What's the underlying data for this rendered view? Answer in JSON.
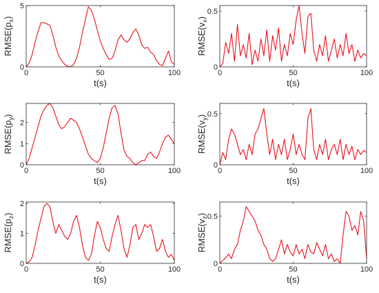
{
  "figure": {
    "line_color": "#e8101c",
    "axis_color": "#262626"
  },
  "chart_data": [
    {
      "type": "line",
      "ylabel_base": "RMSE(p",
      "ylabel_sub": "x",
      "ylabel_close": ")",
      "xlabel": "t(s)",
      "xlim": [
        0,
        100
      ],
      "ylim": [
        0,
        5
      ],
      "xticks": [
        0,
        50,
        100
      ],
      "xtick_labels": [
        "0",
        "50",
        "100"
      ],
      "yticks": [
        0,
        5
      ],
      "ytick_labels": [
        "0",
        "5"
      ],
      "series": [
        {
          "x": [
            0,
            2,
            4,
            6,
            8,
            10,
            12,
            14,
            16,
            18,
            20,
            22,
            24,
            26,
            28,
            30,
            32,
            34,
            36,
            38,
            40,
            42,
            44,
            46,
            48,
            50,
            52,
            54,
            56,
            58,
            60,
            62,
            64,
            66,
            68,
            70,
            72,
            74,
            76,
            78,
            80,
            82,
            84,
            86,
            88,
            90,
            92,
            94,
            96,
            98,
            100
          ],
          "values": [
            0.0,
            0.3,
            1.0,
            2.0,
            2.9,
            3.6,
            3.6,
            3.5,
            3.4,
            2.6,
            1.6,
            0.9,
            0.5,
            0.2,
            0.05,
            0.0,
            0.2,
            0.7,
            1.6,
            2.8,
            3.9,
            4.9,
            4.6,
            3.9,
            3.0,
            2.1,
            1.5,
            1.0,
            0.6,
            0.7,
            1.3,
            2.2,
            2.6,
            2.2,
            2.0,
            2.3,
            2.8,
            3.1,
            2.6,
            1.8,
            1.5,
            1.6,
            1.2,
            1.0,
            0.5,
            0.2,
            0.1,
            0.7,
            1.3,
            0.4,
            0.2
          ]
        }
      ]
    },
    {
      "type": "line",
      "ylabel_base": "RMSE(v",
      "ylabel_sub": "x",
      "ylabel_close": ")",
      "xlabel": "t(s)",
      "xlim": [
        0,
        100
      ],
      "ylim": [
        0,
        0.55
      ],
      "xticks": [
        0,
        50,
        100
      ],
      "xtick_labels": [
        "0",
        "50",
        "100"
      ],
      "yticks": [
        0,
        0.5
      ],
      "ytick_labels": [
        "0",
        "0.5"
      ],
      "series": [
        {
          "x": [
            0,
            2,
            4,
            6,
            8,
            10,
            12,
            14,
            16,
            18,
            20,
            22,
            24,
            26,
            28,
            30,
            32,
            34,
            36,
            38,
            40,
            42,
            44,
            46,
            48,
            50,
            52,
            54,
            56,
            58,
            60,
            62,
            64,
            66,
            68,
            70,
            72,
            74,
            76,
            78,
            80,
            82,
            84,
            86,
            88,
            90,
            92,
            94,
            96,
            98,
            100
          ],
          "values": [
            0.0,
            0.03,
            0.22,
            0.12,
            0.3,
            0.05,
            0.38,
            0.1,
            0.2,
            0.08,
            0.3,
            0.02,
            0.15,
            0.05,
            0.25,
            0.1,
            0.33,
            0.05,
            0.28,
            0.15,
            0.35,
            0.05,
            0.2,
            0.1,
            0.3,
            0.2,
            0.42,
            0.55,
            0.3,
            0.12,
            0.45,
            0.48,
            0.15,
            0.05,
            0.2,
            0.1,
            0.28,
            0.05,
            0.15,
            0.25,
            0.08,
            0.2,
            0.1,
            0.3,
            0.12,
            0.2,
            0.05,
            0.15,
            0.08,
            0.12,
            0.1
          ]
        }
      ]
    },
    {
      "type": "line",
      "ylabel_base": "RMSE(p",
      "ylabel_sub": "y",
      "ylabel_close": ")",
      "xlabel": "t(s)",
      "xlim": [
        0,
        100
      ],
      "ylim": [
        0,
        2.9
      ],
      "xticks": [
        0,
        50,
        100
      ],
      "xtick_labels": [
        "0",
        "50",
        "100"
      ],
      "yticks": [
        0,
        1,
        2
      ],
      "ytick_labels": [
        "0",
        "1",
        "2"
      ],
      "series": [
        {
          "x": [
            0,
            2,
            4,
            6,
            8,
            10,
            12,
            14,
            16,
            18,
            20,
            22,
            24,
            26,
            28,
            30,
            32,
            34,
            36,
            38,
            40,
            42,
            44,
            46,
            48,
            50,
            52,
            54,
            56,
            58,
            60,
            62,
            64,
            66,
            68,
            70,
            72,
            74,
            76,
            78,
            80,
            82,
            84,
            86,
            88,
            90,
            92,
            94,
            96,
            98,
            100
          ],
          "values": [
            0.0,
            0.3,
            0.8,
            1.3,
            1.8,
            2.3,
            2.6,
            2.8,
            2.9,
            2.7,
            2.3,
            1.9,
            1.7,
            1.8,
            2.0,
            2.2,
            2.1,
            2.0,
            1.7,
            1.3,
            0.9,
            0.5,
            0.3,
            0.2,
            0.1,
            0.3,
            0.8,
            1.5,
            2.2,
            2.7,
            2.8,
            2.4,
            1.5,
            0.7,
            0.4,
            0.3,
            0.1,
            0.0,
            0.1,
            0.2,
            0.2,
            0.5,
            0.6,
            0.4,
            0.3,
            0.6,
            1.0,
            1.3,
            1.4,
            1.2,
            1.0
          ]
        }
      ]
    },
    {
      "type": "line",
      "ylabel_base": "RMSE(v",
      "ylabel_sub": "y",
      "ylabel_close": ")",
      "xlabel": "t(s)",
      "xlim": [
        0,
        100
      ],
      "ylim": [
        0,
        0.6
      ],
      "xticks": [
        0,
        50,
        100
      ],
      "xtick_labels": [
        "0",
        "50",
        "100"
      ],
      "yticks": [
        0,
        0.5
      ],
      "ytick_labels": [
        "0",
        "0.5"
      ],
      "series": [
        {
          "x": [
            0,
            2,
            4,
            6,
            8,
            10,
            12,
            14,
            16,
            18,
            20,
            22,
            24,
            26,
            28,
            30,
            32,
            34,
            36,
            38,
            40,
            42,
            44,
            46,
            48,
            50,
            52,
            54,
            56,
            58,
            60,
            62,
            64,
            66,
            68,
            70,
            72,
            74,
            76,
            78,
            80,
            82,
            84,
            86,
            88,
            90,
            92,
            94,
            96,
            98,
            100
          ],
          "values": [
            0.0,
            0.12,
            0.05,
            0.25,
            0.35,
            0.3,
            0.2,
            0.1,
            0.15,
            0.05,
            0.2,
            0.1,
            0.3,
            0.35,
            0.45,
            0.55,
            0.3,
            0.1,
            0.25,
            0.05,
            0.2,
            0.1,
            0.25,
            0.05,
            0.15,
            0.3,
            0.1,
            0.2,
            0.1,
            0.05,
            0.45,
            0.55,
            0.15,
            0.05,
            0.2,
            0.1,
            0.25,
            0.05,
            0.15,
            0.2,
            0.1,
            0.25,
            0.05,
            0.2,
            0.1,
            0.18,
            0.05,
            0.15,
            0.1,
            0.14,
            0.12
          ]
        }
      ]
    },
    {
      "type": "line",
      "ylabel_base": "RMSE(p",
      "ylabel_sub": "z",
      "ylabel_close": ")",
      "xlabel": "t(s)",
      "xlim": [
        0,
        100
      ],
      "ylim": [
        0,
        2.05
      ],
      "xticks": [
        0,
        50,
        100
      ],
      "xtick_labels": [
        "0",
        "50",
        "100"
      ],
      "yticks": [
        0,
        1,
        2
      ],
      "ytick_labels": [
        "0",
        "1",
        "2"
      ],
      "series": [
        {
          "x": [
            0,
            2,
            4,
            6,
            8,
            10,
            12,
            14,
            16,
            18,
            20,
            22,
            24,
            26,
            28,
            30,
            32,
            34,
            36,
            38,
            40,
            42,
            44,
            46,
            48,
            50,
            52,
            54,
            56,
            58,
            60,
            62,
            64,
            66,
            68,
            70,
            72,
            74,
            76,
            78,
            80,
            82,
            84,
            86,
            88,
            90,
            92,
            94,
            96,
            98,
            100
          ],
          "values": [
            0.0,
            0.05,
            0.2,
            0.6,
            1.1,
            1.5,
            1.9,
            2.0,
            1.9,
            1.4,
            1.0,
            1.3,
            1.1,
            0.9,
            0.8,
            1.0,
            1.4,
            1.6,
            1.2,
            0.6,
            0.2,
            0.1,
            0.3,
            0.9,
            1.4,
            1.2,
            0.8,
            0.5,
            0.4,
            0.9,
            1.3,
            1.6,
            1.1,
            0.5,
            0.2,
            0.6,
            1.2,
            1.3,
            0.8,
            1.0,
            1.3,
            1.2,
            1.3,
            0.9,
            0.4,
            0.5,
            0.8,
            0.4,
            0.2,
            0.3,
            0.1
          ]
        }
      ]
    },
    {
      "type": "line",
      "ylabel_base": "RMSE(v",
      "ylabel_sub": "z",
      "ylabel_close": ")",
      "xlabel": "t(s)",
      "xlim": [
        0,
        100
      ],
      "ylim": [
        0,
        0.65
      ],
      "xticks": [
        0,
        50,
        100
      ],
      "xtick_labels": [
        "0",
        "50",
        "100"
      ],
      "yticks": [
        0,
        0.5
      ],
      "ytick_labels": [
        "0",
        "0.5"
      ],
      "series": [
        {
          "x": [
            0,
            2,
            4,
            6,
            8,
            10,
            12,
            14,
            16,
            18,
            20,
            22,
            24,
            26,
            28,
            30,
            32,
            34,
            36,
            38,
            40,
            42,
            44,
            46,
            48,
            50,
            52,
            54,
            56,
            58,
            60,
            62,
            64,
            66,
            68,
            70,
            72,
            74,
            76,
            78,
            80,
            82,
            84,
            86,
            88,
            90,
            92,
            94,
            96,
            98,
            100
          ],
          "values": [
            0.0,
            0.03,
            0.06,
            0.1,
            0.05,
            0.15,
            0.2,
            0.35,
            0.45,
            0.6,
            0.55,
            0.5,
            0.45,
            0.35,
            0.3,
            0.2,
            0.15,
            0.05,
            0.02,
            0.05,
            0.15,
            0.25,
            0.1,
            0.2,
            0.12,
            0.08,
            0.2,
            0.1,
            0.15,
            0.05,
            0.2,
            0.12,
            0.1,
            0.22,
            0.15,
            0.08,
            0.2,
            0.05,
            0.1,
            0.02,
            0.05,
            0.0,
            0.3,
            0.55,
            0.5,
            0.35,
            0.4,
            0.3,
            0.55,
            0.45,
            0.05
          ]
        }
      ]
    }
  ]
}
